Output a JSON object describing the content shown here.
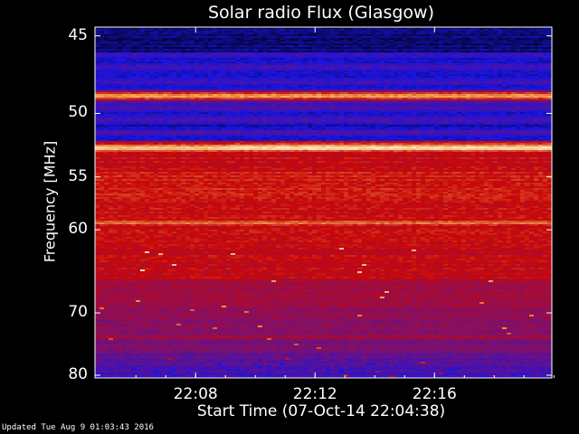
{
  "chart_data": {
    "type": "heatmap",
    "title": "Solar radio Flux (Glasgow)",
    "xlabel": "Start Time (07-Oct-14 22:04:38)",
    "ylabel": "Frequency [MHz]",
    "x_ticks": [
      "22:08",
      "22:12",
      "22:16"
    ],
    "x_tick_values_min": [
      3.37,
      7.37,
      11.37
    ],
    "xlim_min": [
      0,
      15.3
    ],
    "y_ticks": [
      45,
      50,
      55,
      60,
      70,
      80
    ],
    "ylim": [
      44.5,
      80.5
    ],
    "y_scale": "reciprocal",
    "colormap": "blue-red-yellow-white",
    "colors": {
      "low": "#000010",
      "mid_low": "#1a14e0",
      "mid": "#7a1070",
      "mid_high": "#c80808",
      "high": "#f0a050",
      "peak": "#fff8f0"
    },
    "bright_bands_mhz": [
      48.8,
      52.6,
      59.3,
      73.5
    ],
    "segment_break_min": 4.4
  },
  "footer": "Updated Tue Aug  9 01:03:43 2016"
}
